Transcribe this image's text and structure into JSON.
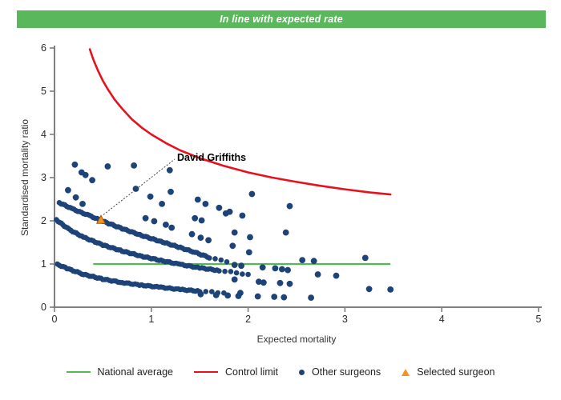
{
  "banner": {
    "title": "In line with expected rate",
    "bg_color": "#5bb75b",
    "text_color": "#ffffff"
  },
  "chart_data": {
    "type": "scatter",
    "title": "",
    "xlabel": "Expected mortality",
    "ylabel": "Standardised mortality ratio",
    "xlim": [
      0,
      5
    ],
    "ylim": [
      0,
      6
    ],
    "x_ticks": [
      0,
      1,
      2,
      3,
      4,
      5
    ],
    "y_ticks": [
      0,
      1,
      2,
      3,
      4,
      5,
      6
    ],
    "grid": false,
    "legend_position": "bottom",
    "national_average": {
      "y": 1,
      "x_start": 0.4,
      "x_end": 3.47,
      "color": "#53b953"
    },
    "control_limit": {
      "color": "#e8101c",
      "formula": "y = 1 + 3/sqrt(x)",
      "x_start": 0.365,
      "x_end": 3.47,
      "points": [
        [
          0.365,
          5.97
        ],
        [
          0.4,
          5.74
        ],
        [
          0.45,
          5.47
        ],
        [
          0.5,
          5.24
        ],
        [
          0.55,
          5.05
        ],
        [
          0.62,
          4.81
        ],
        [
          0.7,
          4.59
        ],
        [
          0.8,
          4.35
        ],
        [
          0.9,
          4.16
        ],
        [
          1,
          4.0
        ],
        [
          1.15,
          3.8
        ],
        [
          1.3,
          3.63
        ],
        [
          1.5,
          3.45
        ],
        [
          1.75,
          3.27
        ],
        [
          2,
          3.12
        ],
        [
          2.25,
          3.0
        ],
        [
          2.5,
          2.9
        ],
        [
          2.75,
          2.81
        ],
        [
          3,
          2.73
        ],
        [
          3.25,
          2.66
        ],
        [
          3.47,
          2.61
        ]
      ]
    },
    "selected_surgeon": {
      "label": "David Griffiths",
      "x": 0.48,
      "y": 2.01,
      "color": "#f6921e",
      "border_color": "#9a5b00"
    },
    "other_surgeons": {
      "color": "#1d4378",
      "bands": [
        {
          "name": "band-upper",
          "dense_until": 1.58,
          "points": [
            [
              0.05,
              2.42
            ],
            [
              0.2,
              2.26
            ],
            [
              0.36,
              2.12
            ],
            [
              0.5,
              1.99
            ],
            [
              0.7,
              1.82
            ],
            [
              0.9,
              1.66
            ],
            [
              1.1,
              1.52
            ],
            [
              1.3,
              1.38
            ],
            [
              1.45,
              1.27
            ],
            [
              1.6,
              1.15
            ],
            [
              1.78,
              1.05
            ]
          ]
        },
        {
          "name": "band-middle",
          "dense_until": 1.78,
          "points": [
            [
              0.02,
              2.02
            ],
            [
              0.15,
              1.8
            ],
            [
              0.3,
              1.62
            ],
            [
              0.5,
              1.44
            ],
            [
              0.7,
              1.3
            ],
            [
              0.9,
              1.18
            ],
            [
              1.1,
              1.08
            ],
            [
              1.3,
              0.99
            ],
            [
              1.5,
              0.91
            ],
            [
              1.7,
              0.85
            ],
            [
              2.0,
              0.76
            ]
          ]
        },
        {
          "name": "band-lower",
          "dense_until": 1.55,
          "points": [
            [
              0.03,
              0.99
            ],
            [
              0.15,
              0.88
            ],
            [
              0.3,
              0.76
            ],
            [
              0.5,
              0.65
            ],
            [
              0.7,
              0.57
            ],
            [
              0.9,
              0.51
            ],
            [
              1.1,
              0.46
            ],
            [
              1.3,
              0.41
            ],
            [
              1.5,
              0.37
            ],
            [
              1.75,
              0.33
            ]
          ]
        }
      ],
      "points": [
        [
          0.21,
          3.3
        ],
        [
          0.28,
          3.12
        ],
        [
          0.32,
          3.06
        ],
        [
          0.39,
          2.94
        ],
        [
          0.14,
          2.71
        ],
        [
          0.22,
          2.54
        ],
        [
          0.29,
          2.39
        ],
        [
          0.55,
          3.26
        ],
        [
          0.82,
          3.28
        ],
        [
          1.19,
          3.17
        ],
        [
          0.84,
          2.74
        ],
        [
          1.2,
          2.67
        ],
        [
          0.99,
          2.56
        ],
        [
          1.11,
          2.39
        ],
        [
          1.48,
          2.49
        ],
        [
          1.56,
          2.39
        ],
        [
          1.7,
          2.3
        ],
        [
          1.81,
          2.21
        ],
        [
          1.94,
          2.12
        ],
        [
          1.45,
          2.06
        ],
        [
          1.52,
          2.01
        ],
        [
          0.94,
          2.06
        ],
        [
          1.03,
          1.99
        ],
        [
          1.15,
          1.91
        ],
        [
          1.21,
          1.84
        ],
        [
          1.42,
          1.69
        ],
        [
          1.51,
          1.61
        ],
        [
          1.59,
          1.55
        ],
        [
          1.77,
          2.17
        ],
        [
          2.04,
          2.62
        ],
        [
          2.43,
          2.34
        ],
        [
          1.86,
          1.73
        ],
        [
          2.02,
          1.62
        ],
        [
          2.39,
          1.73
        ],
        [
          1.84,
          1.42
        ],
        [
          2.01,
          1.27
        ],
        [
          2.56,
          1.09
        ],
        [
          2.68,
          1.07
        ],
        [
          3.21,
          1.14
        ],
        [
          1.86,
          0.98
        ],
        [
          1.93,
          0.96
        ],
        [
          2.15,
          0.92
        ],
        [
          2.28,
          0.9
        ],
        [
          2.35,
          0.88
        ],
        [
          2.41,
          0.86
        ],
        [
          2.72,
          0.76
        ],
        [
          2.91,
          0.73
        ],
        [
          1.86,
          0.64
        ],
        [
          2.11,
          0.59
        ],
        [
          2.16,
          0.57
        ],
        [
          2.33,
          0.56
        ],
        [
          2.43,
          0.54
        ],
        [
          1.92,
          0.33
        ],
        [
          1.51,
          0.3
        ],
        [
          1.67,
          0.28
        ],
        [
          1.79,
          0.27
        ],
        [
          1.9,
          0.26
        ],
        [
          2.1,
          0.25
        ],
        [
          2.27,
          0.24
        ],
        [
          2.37,
          0.23
        ],
        [
          2.65,
          0.22
        ],
        [
          3.25,
          0.42
        ],
        [
          3.47,
          0.41
        ]
      ]
    }
  },
  "legend": {
    "items": [
      {
        "label": "National average",
        "swatch": "line",
        "color": "#53b953"
      },
      {
        "label": "Control limit",
        "swatch": "line",
        "color": "#e8101c"
      },
      {
        "label": "Other surgeons",
        "swatch": "dot",
        "color": "#1d4378"
      },
      {
        "label": "Selected surgeon",
        "swatch": "triangle",
        "color": "#f6921e"
      }
    ]
  }
}
